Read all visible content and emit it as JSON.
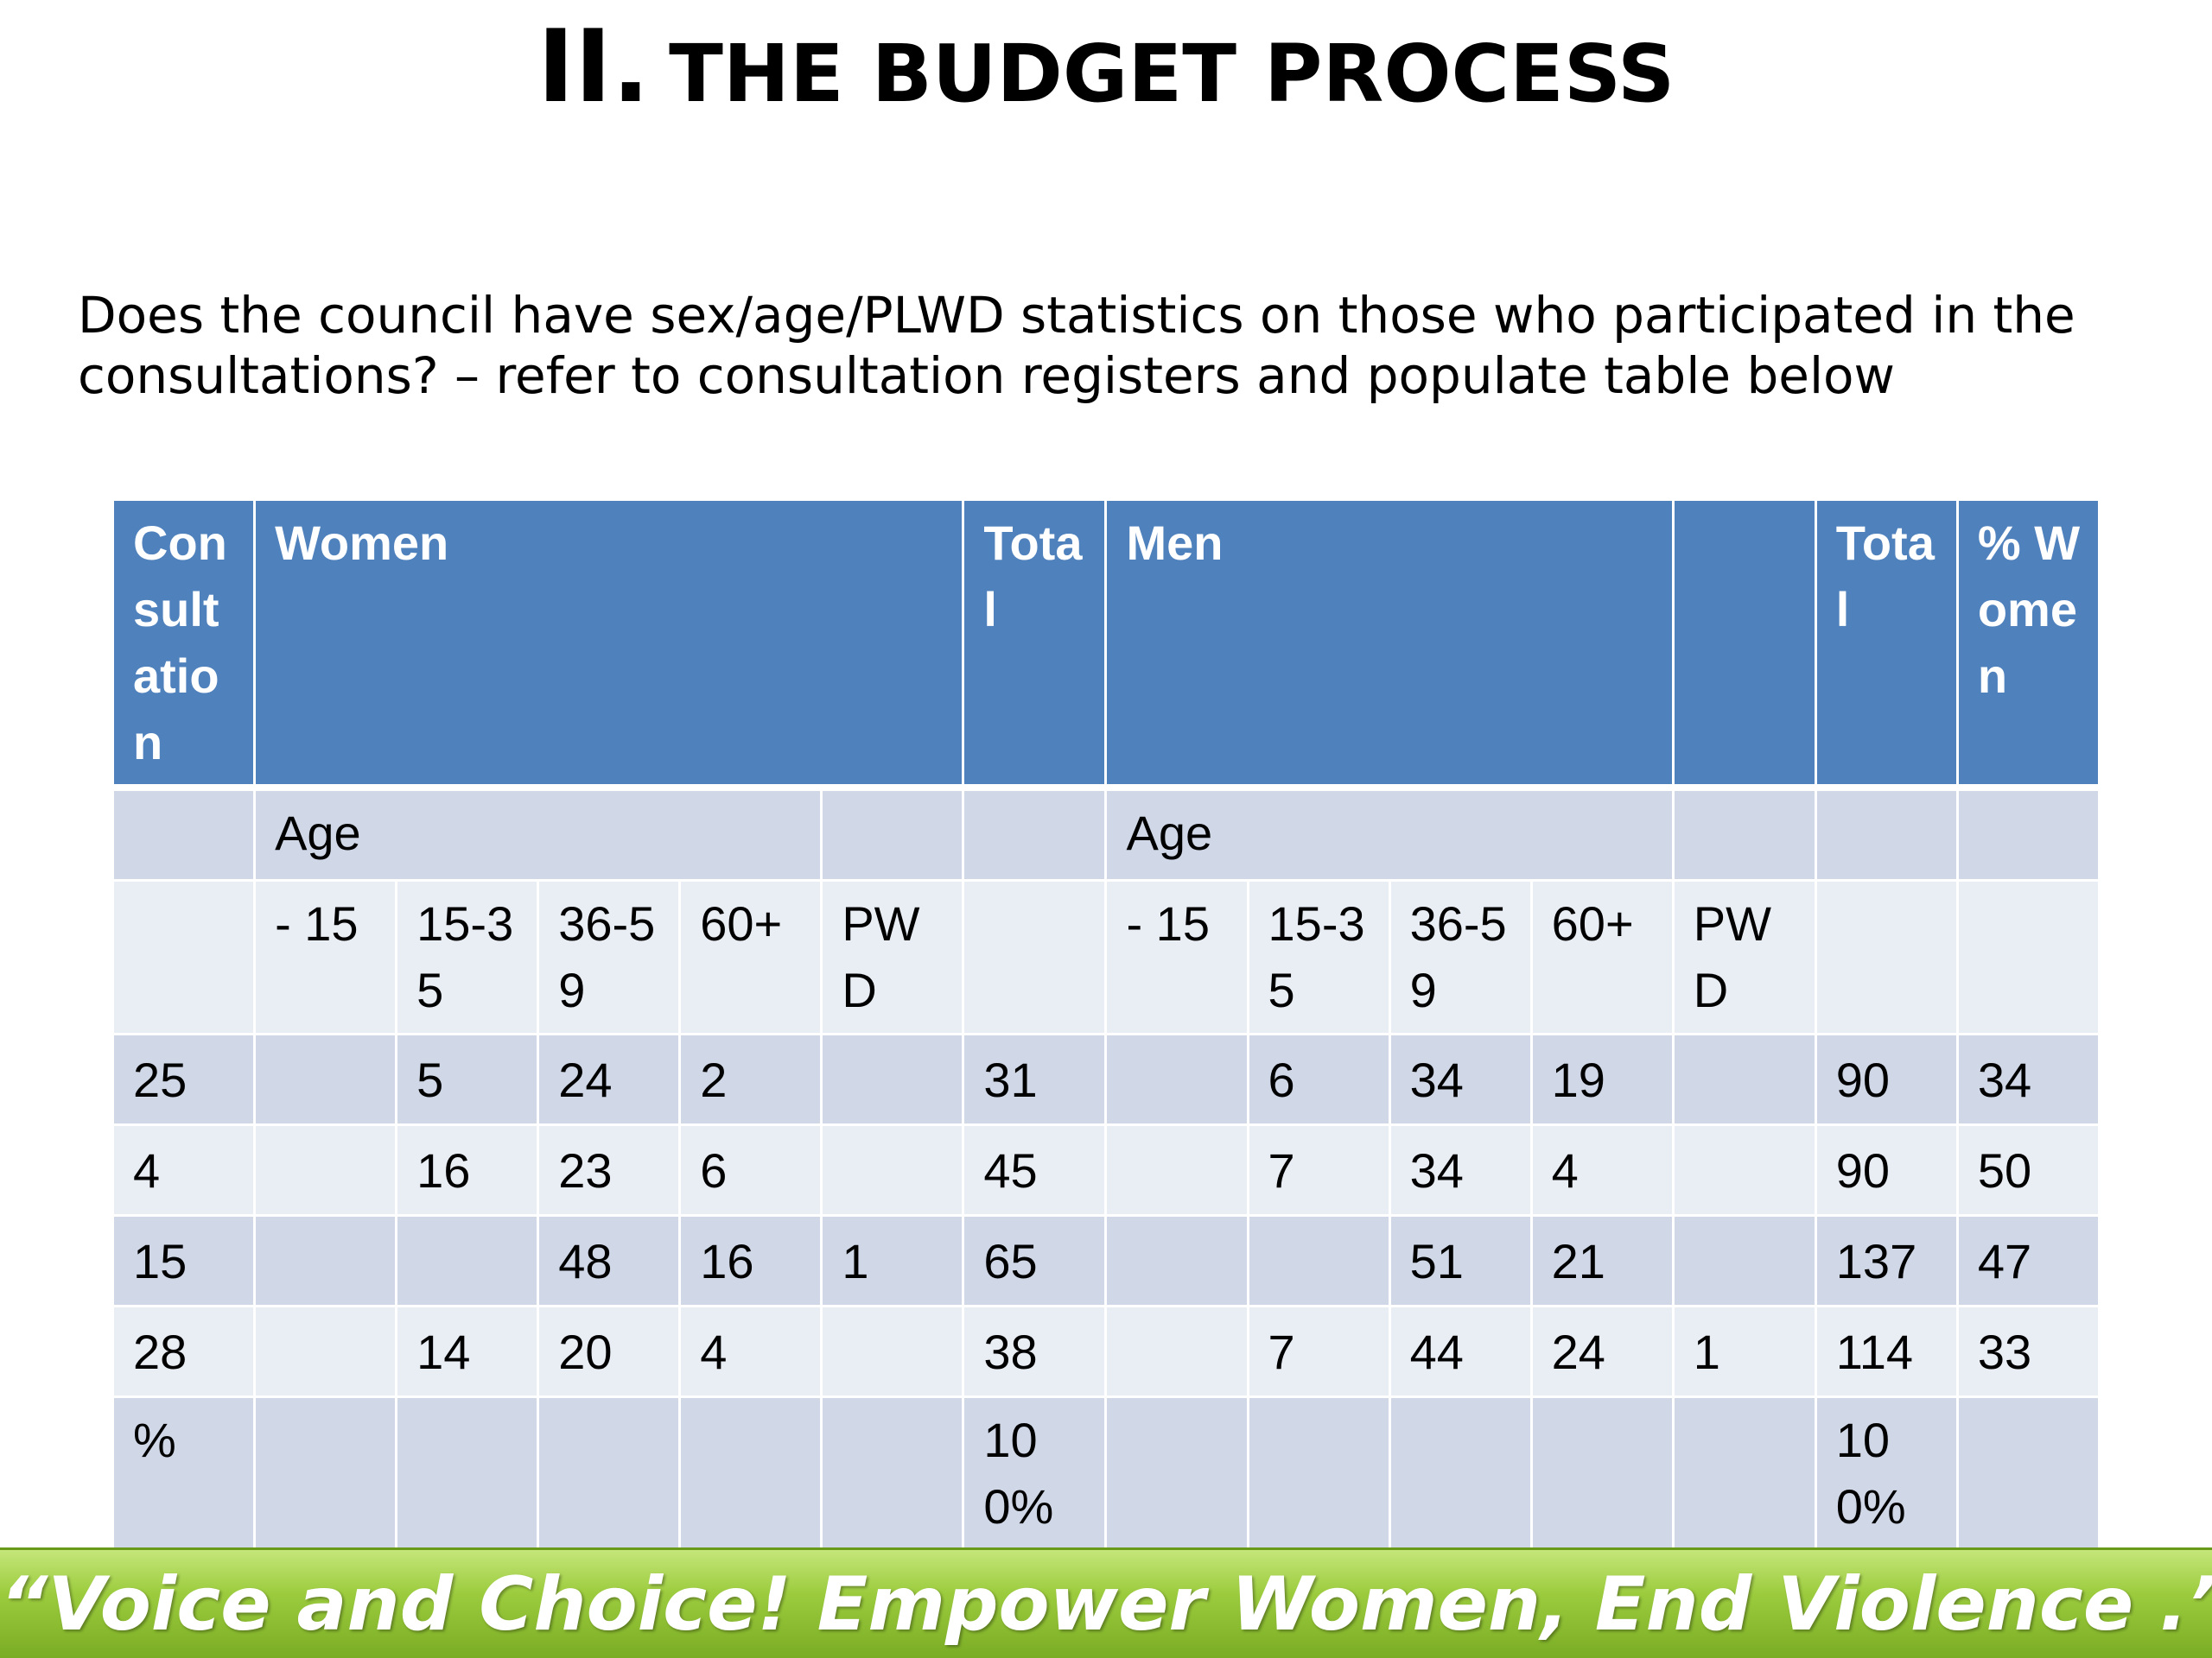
{
  "slide": {
    "title_numeral": "II.",
    "title_text": "THE BUDGET PROCESS",
    "question": "Does the council have sex/age/PLWD statistics on those who participated in the consultations? – refer to consultation registers and populate table below",
    "footer": "“Voice and Choice! Empower Women, End Violence .”"
  },
  "table": {
    "header": {
      "consultation": "Consultation",
      "women": "Women",
      "total_women": "Total",
      "men": "Men",
      "blank": "",
      "total_men": "Total",
      "pct_women": "% Women"
    },
    "age_row": {
      "women_age": "Age",
      "men_age": "Age"
    },
    "age_groups": {
      "women": [
        "- 15",
        "15-35",
        "36-59",
        "60+",
        "PWD"
      ],
      "men": [
        "- 15",
        "15-35",
        "36-59",
        "60+",
        "PWD"
      ]
    },
    "rows": [
      {
        "consultation": "25",
        "w_u15": "",
        "w_15_35": "5",
        "w_36_59": "24",
        "w_60": "2",
        "w_pwd": "",
        "w_total": "31",
        "m_u15": "",
        "m_15_35": "6",
        "m_36_59": "34",
        "m_60": "19",
        "m_pwd": "",
        "m_total": "90",
        "pct_women": "34"
      },
      {
        "consultation": "4",
        "w_u15": "",
        "w_15_35": "16",
        "w_36_59": "23",
        "w_60": "6",
        "w_pwd": "",
        "w_total": "45",
        "m_u15": "",
        "m_15_35": "7",
        "m_36_59": "34",
        "m_60": "4",
        "m_pwd": "",
        "m_total": "90",
        "pct_women": "50"
      },
      {
        "consultation": "15",
        "w_u15": "",
        "w_15_35": "",
        "w_36_59": "48",
        "w_60": "16",
        "w_pwd": "1",
        "w_total": "65",
        "m_u15": "",
        "m_15_35": "",
        "m_36_59": "51",
        "m_60": "21",
        "m_pwd": "",
        "m_total": "137",
        "pct_women": "47"
      },
      {
        "consultation": "28",
        "w_u15": "",
        "w_15_35": "14",
        "w_36_59": "20",
        "w_60": "4",
        "w_pwd": "",
        "w_total": "38",
        "m_u15": "",
        "m_15_35": "7",
        "m_36_59": "44",
        "m_60": "24",
        "m_pwd": "1",
        "m_total": "114",
        "pct_women": "33"
      }
    ],
    "percent_row": {
      "label": "%",
      "w_total": "100%",
      "m_total": "100%"
    }
  },
  "colors": {
    "header_blue": "#4f81bd",
    "row_band_dark": "#d0d8e8",
    "row_band_light": "#e9edf4",
    "banner_green": "#9ccc3e"
  }
}
